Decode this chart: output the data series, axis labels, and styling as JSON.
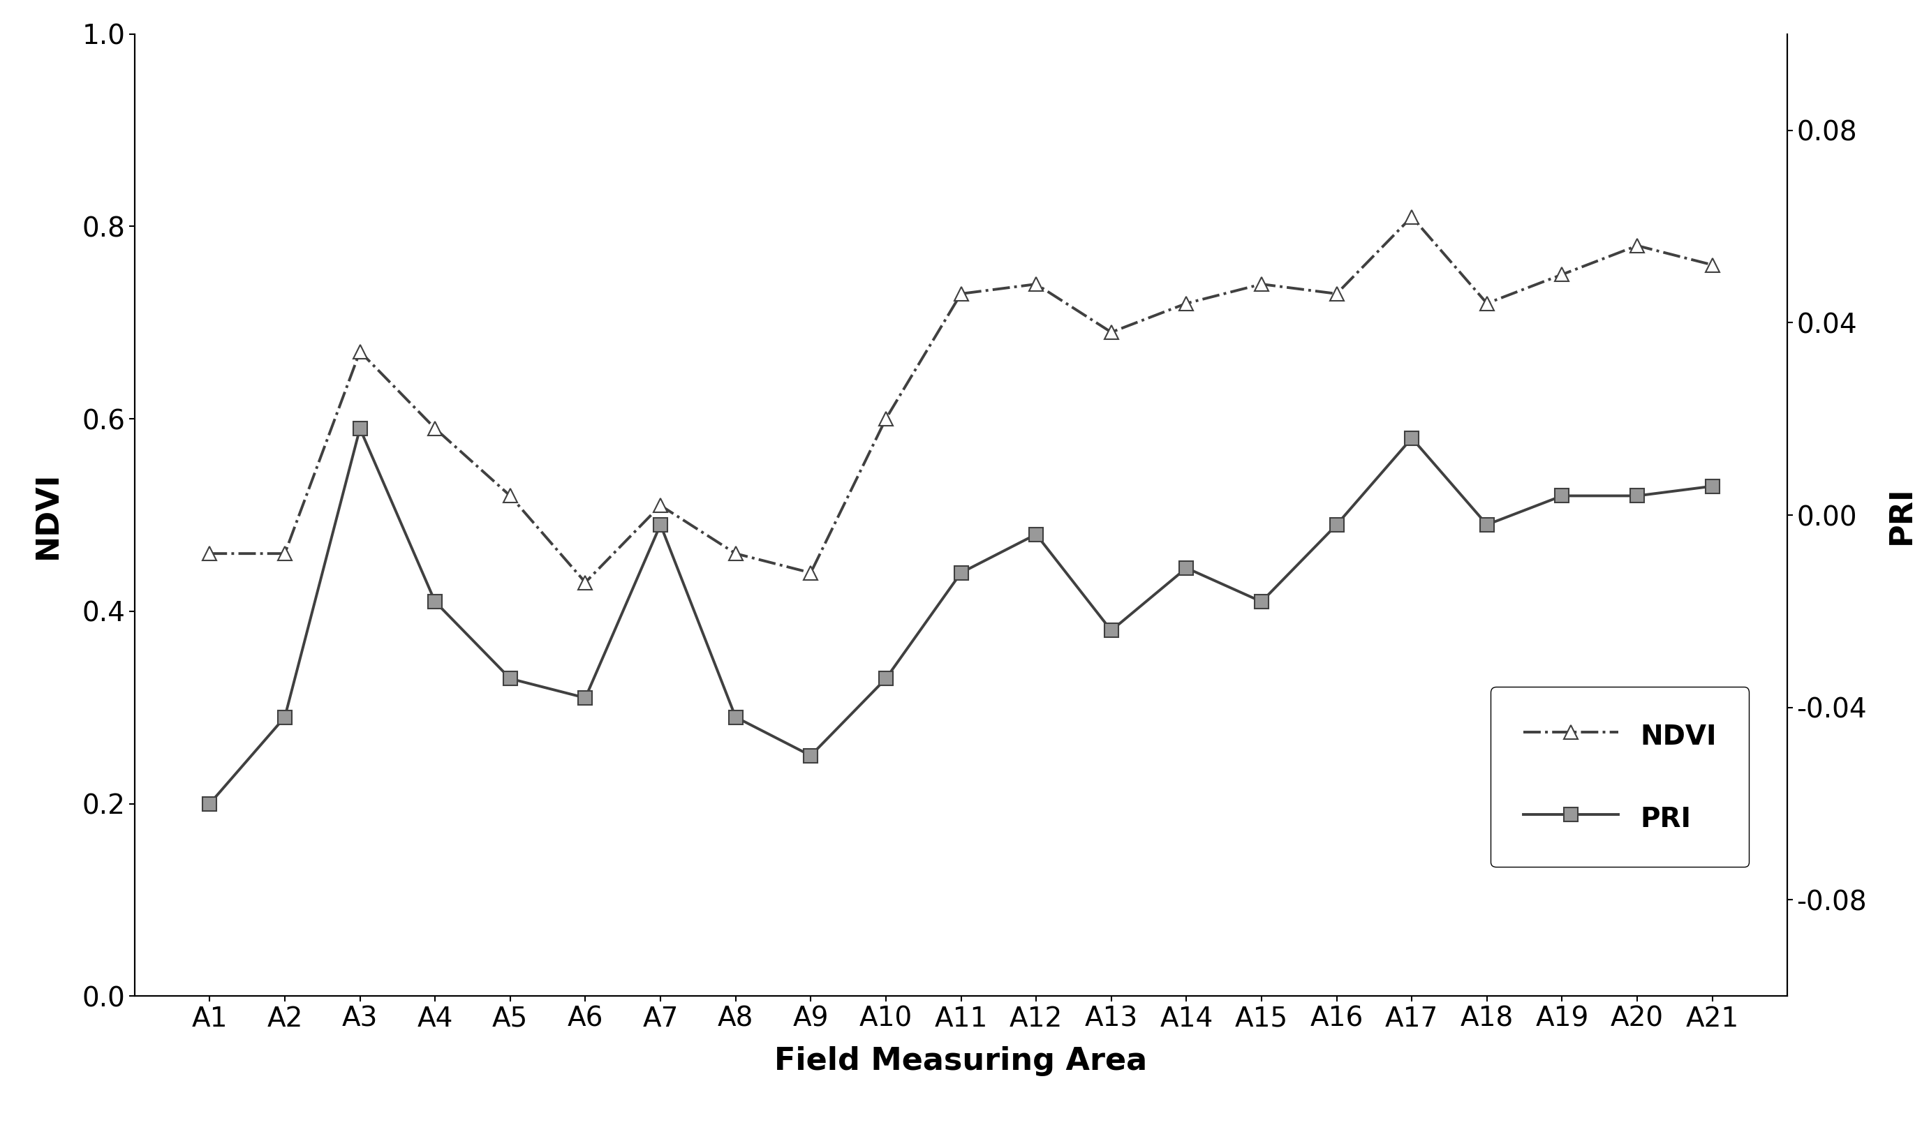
{
  "categories": [
    "A1",
    "A2",
    "A3",
    "A4",
    "A5",
    "A6",
    "A7",
    "A8",
    "A9",
    "A10",
    "A11",
    "A12",
    "A13",
    "A14",
    "A15",
    "A16",
    "A17",
    "A18",
    "A19",
    "A20",
    "A21"
  ],
  "ndvi": [
    0.46,
    0.46,
    0.67,
    0.59,
    0.52,
    0.43,
    0.51,
    0.46,
    0.44,
    0.6,
    0.73,
    0.74,
    0.69,
    0.72,
    0.74,
    0.73,
    0.81,
    0.72,
    0.75,
    0.78,
    0.76
  ],
  "pri": [
    -0.06,
    -0.042,
    0.018,
    -0.018,
    -0.034,
    -0.038,
    -0.002,
    -0.042,
    -0.05,
    -0.034,
    -0.012,
    -0.004,
    -0.024,
    -0.011,
    -0.018,
    -0.002,
    0.016,
    -0.002,
    0.004,
    0.004,
    0.006
  ],
  "ndvi_ylim": [
    0.0,
    1.0
  ],
  "pri_ylim": [
    -0.1,
    0.1
  ],
  "xlabel": "Field Measuring Area",
  "ylabel_left": "NDVI",
  "ylabel_right": "PRI",
  "line_color": "#404040",
  "pri_fill_color": "#999999",
  "background_color": "#ffffff",
  "label_fontsize": 32,
  "tick_fontsize": 28,
  "legend_fontsize": 28,
  "ndvi_linestyle": "-.",
  "pri_linestyle": "-",
  "ndvi_marker": "^",
  "pri_marker": "s",
  "ndvi_markersize": 14,
  "pri_markersize": 14,
  "linewidth": 2.8
}
